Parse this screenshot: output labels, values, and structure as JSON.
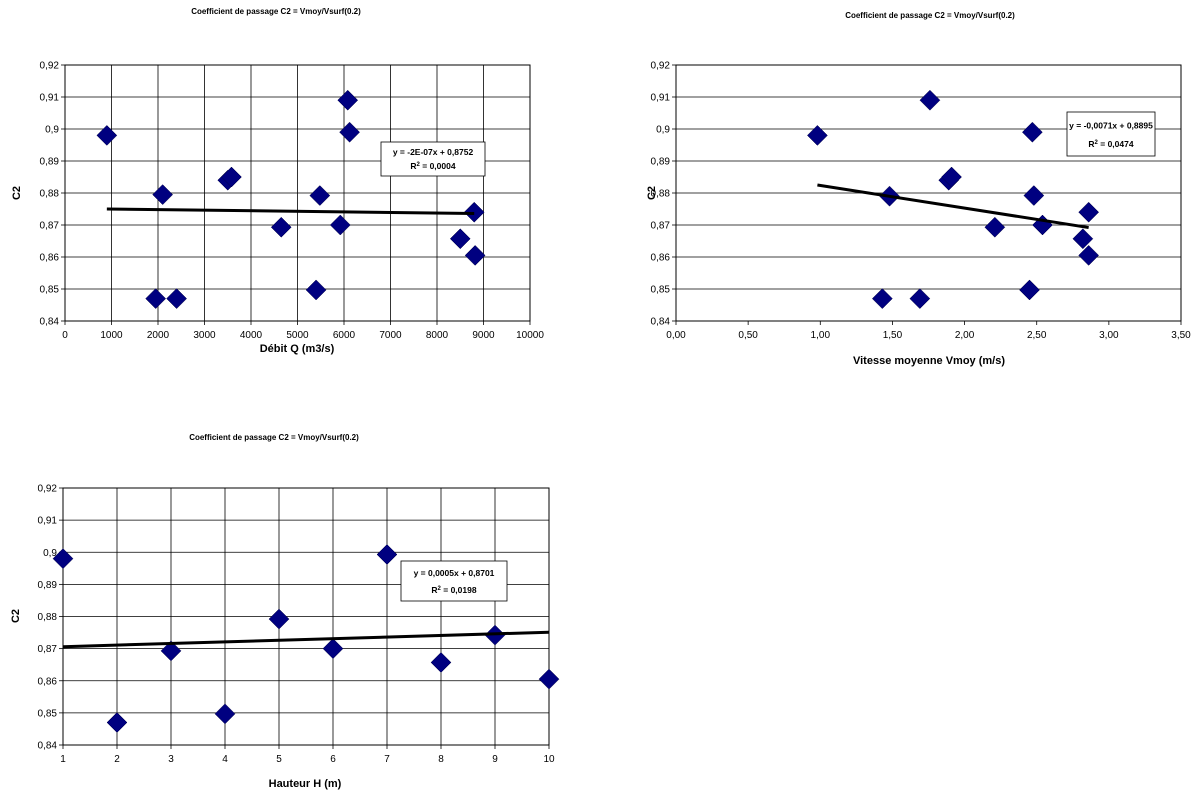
{
  "chart_data": [
    {
      "type": "scatter",
      "title": "Coefficient de passage C2 = Vmoy/Vsurf(0.2)",
      "xlabel": "Débit Q (m3/s)",
      "ylabel": "C2",
      "xlim": [
        0,
        10000
      ],
      "ylim": [
        0.84,
        0.92
      ],
      "x_ticks": [
        "0",
        "1000",
        "2000",
        "3000",
        "4000",
        "5000",
        "6000",
        "7000",
        "8000",
        "9000",
        "10000"
      ],
      "y_ticks": [
        "0,84",
        "0,85",
        "0,86",
        "0,87",
        "0,88",
        "0,89",
        "0,9",
        "0,91",
        "0,92"
      ],
      "grid": true,
      "marker_color": "#000080",
      "points": [
        {
          "x": 900,
          "y": 0.898
        },
        {
          "x": 1950,
          "y": 0.847
        },
        {
          "x": 2100,
          "y": 0.8795
        },
        {
          "x": 2400,
          "y": 0.847
        },
        {
          "x": 3500,
          "y": 0.884
        },
        {
          "x": 3580,
          "y": 0.885
        },
        {
          "x": 4650,
          "y": 0.8693
        },
        {
          "x": 5400,
          "y": 0.8497
        },
        {
          "x": 5480,
          "y": 0.8792
        },
        {
          "x": 5920,
          "y": 0.87
        },
        {
          "x": 6080,
          "y": 0.909
        },
        {
          "x": 6120,
          "y": 0.899
        },
        {
          "x": 8500,
          "y": 0.8657
        },
        {
          "x": 8800,
          "y": 0.874
        },
        {
          "x": 8820,
          "y": 0.8605
        }
      ],
      "trendline": {
        "x": [
          900,
          8800
        ],
        "y": [
          0.875,
          0.8736
        ],
        "color": "#000000"
      },
      "equation": "y = -2E-07x + 0,8752",
      "r2_prefix": "R",
      "r2_value": " = 0,0004"
    },
    {
      "type": "scatter",
      "title": "Coefficient de passage C2 = Vmoy/Vsurf(0.2)",
      "xlabel": "Vitesse moyenne Vmoy (m/s)",
      "ylabel": "C2",
      "xlim": [
        0,
        3.5
      ],
      "ylim": [
        0.84,
        0.92
      ],
      "x_ticks": [
        "0,00",
        "0,50",
        "1,00",
        "1,50",
        "2,00",
        "2,50",
        "3,00",
        "3,50"
      ],
      "y_ticks": [
        "0,84",
        "0,85",
        "0,86",
        "0,87",
        "0,88",
        "0,89",
        "0,9",
        "0,91",
        "0,92"
      ],
      "grid": false,
      "marker_color": "#000080",
      "points": [
        {
          "x": 0.98,
          "y": 0.898
        },
        {
          "x": 1.43,
          "y": 0.847
        },
        {
          "x": 1.48,
          "y": 0.879
        },
        {
          "x": 1.69,
          "y": 0.847
        },
        {
          "x": 1.76,
          "y": 0.909
        },
        {
          "x": 1.89,
          "y": 0.884
        },
        {
          "x": 1.91,
          "y": 0.885
        },
        {
          "x": 2.21,
          "y": 0.8693
        },
        {
          "x": 2.45,
          "y": 0.8497
        },
        {
          "x": 2.47,
          "y": 0.899
        },
        {
          "x": 2.48,
          "y": 0.8792
        },
        {
          "x": 2.54,
          "y": 0.87
        },
        {
          "x": 2.82,
          "y": 0.8657
        },
        {
          "x": 2.86,
          "y": 0.874
        },
        {
          "x": 2.86,
          "y": 0.8605
        }
      ],
      "trendline": {
        "x": [
          0.98,
          2.86
        ],
        "y": [
          0.8825,
          0.8692
        ],
        "color": "#000000"
      },
      "equation": "y = -0,0071x + 0,8895",
      "r2_prefix": "R",
      "r2_value": " = 0,0474"
    },
    {
      "type": "scatter",
      "title": "Coefficient de passage C2 = Vmoy/Vsurf(0.2)",
      "xlabel": "Hauteur H (m)",
      "ylabel": "C2",
      "xlim": [
        1,
        10
      ],
      "ylim": [
        0.84,
        0.92
      ],
      "x_ticks": [
        "1",
        "2",
        "3",
        "4",
        "5",
        "6",
        "7",
        "8",
        "9",
        "10"
      ],
      "y_ticks": [
        "0,84",
        "0,85",
        "0,86",
        "0,87",
        "0,88",
        "0,89",
        "0,9",
        "0,91",
        "0,92"
      ],
      "grid": true,
      "marker_color": "#000080",
      "points": [
        {
          "x": 1,
          "y": 0.898
        },
        {
          "x": 2,
          "y": 0.847
        },
        {
          "x": 3,
          "y": 0.8693
        },
        {
          "x": 4,
          "y": 0.8497
        },
        {
          "x": 5,
          "y": 0.8792
        },
        {
          "x": 6,
          "y": 0.87
        },
        {
          "x": 7,
          "y": 0.8993
        },
        {
          "x": 8,
          "y": 0.8657
        },
        {
          "x": 9,
          "y": 0.8742
        },
        {
          "x": 10,
          "y": 0.8605
        }
      ],
      "trendline": {
        "x": [
          1,
          10
        ],
        "y": [
          0.8706,
          0.8751
        ],
        "color": "#000000"
      },
      "equation": "y = 0,0005x + 0,8701",
      "r2_prefix": "R",
      "r2_value": " = 0,0198"
    }
  ]
}
